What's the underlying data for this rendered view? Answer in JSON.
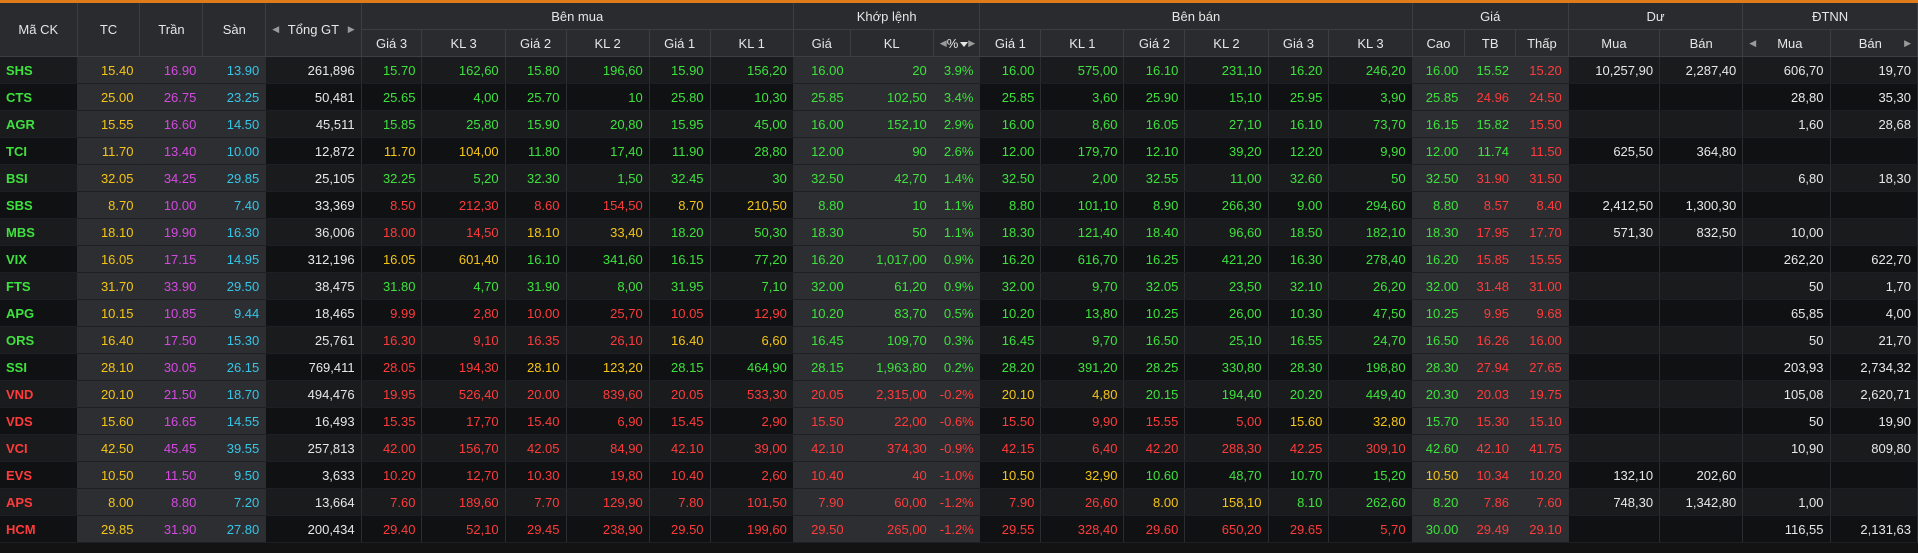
{
  "colors": {
    "up": "#3ee23e",
    "down": "#ff3b3b",
    "ref": "#f5c518",
    "ceil": "#d44ae0",
    "floor": "#36c6e8",
    "neutral": "#e8e8e8",
    "accent": "#e07b1a"
  },
  "header": {
    "symbol": "Mã CK",
    "ref": "TC",
    "ceiling": "Trần",
    "floor": "Sàn",
    "total_value": "Tổng GT",
    "buy_group": "Bên mua",
    "match_group": "Khớp lệnh",
    "sell_group": "Bên bán",
    "price_group": "Giá",
    "remain_group": "Dư",
    "foreign_group": "ĐTNN",
    "buy_cols": [
      "Giá 3",
      "KL 3",
      "Giá 2",
      "KL 2",
      "Giá 1",
      "KL 1"
    ],
    "match_cols": [
      "Giá",
      "KL",
      "%"
    ],
    "sell_cols": [
      "Giá 1",
      "KL 1",
      "Giá 2",
      "KL 2",
      "Giá 3",
      "KL 3"
    ],
    "price_cols": [
      "Cao",
      "TB",
      "Thấp"
    ],
    "remain_cols": [
      "Mua",
      "Bán"
    ],
    "foreign_cols": [
      "Mua",
      "Bán"
    ]
  },
  "rows": [
    {
      "s": "SHS",
      "tc": "15.40",
      "tran": "16.90",
      "san": "13.90",
      "gt": "261,896",
      "b": [
        "15.70",
        "162,60",
        "15.80",
        "196,60",
        "15.90",
        "156,20"
      ],
      "m": [
        "16.00",
        "20",
        "3.9%"
      ],
      "a": [
        "16.00",
        "575,00",
        "16.10",
        "231,10",
        "16.20",
        "246,20"
      ],
      "p": [
        "16.00",
        "15.52",
        "15.20"
      ],
      "d": [
        "10,257,90",
        "2,287,40"
      ],
      "f": [
        "606,70",
        "19,70"
      ],
      "c": {
        "sym": "up",
        "b": [
          "up",
          "up",
          "up",
          "up",
          "up",
          "up"
        ],
        "m": [
          "up",
          "up",
          "up"
        ],
        "a": [
          "up",
          "up",
          "up",
          "up",
          "up",
          "up"
        ],
        "p": [
          "up",
          "up",
          "down"
        ]
      }
    },
    {
      "s": "CTS",
      "tc": "25.00",
      "tran": "26.75",
      "san": "23.25",
      "gt": "50,481",
      "b": [
        "25.65",
        "4,00",
        "25.70",
        "10",
        "25.80",
        "10,30"
      ],
      "m": [
        "25.85",
        "102,50",
        "3.4%"
      ],
      "a": [
        "25.85",
        "3,60",
        "25.90",
        "15,10",
        "25.95",
        "3,90"
      ],
      "p": [
        "25.85",
        "24.96",
        "24.50"
      ],
      "d": [
        "",
        ""
      ],
      "f": [
        "28,80",
        "35,30"
      ],
      "c": {
        "sym": "up",
        "b": [
          "up",
          "up",
          "up",
          "up",
          "up",
          "up"
        ],
        "m": [
          "up",
          "up",
          "up"
        ],
        "a": [
          "up",
          "up",
          "up",
          "up",
          "up",
          "up"
        ],
        "p": [
          "up",
          "down",
          "down"
        ]
      }
    },
    {
      "s": "AGR",
      "tc": "15.55",
      "tran": "16.60",
      "san": "14.50",
      "gt": "45,511",
      "b": [
        "15.85",
        "25,80",
        "15.90",
        "20,80",
        "15.95",
        "45,00"
      ],
      "m": [
        "16.00",
        "152,10",
        "2.9%"
      ],
      "a": [
        "16.00",
        "8,60",
        "16.05",
        "27,10",
        "16.10",
        "73,70"
      ],
      "p": [
        "16.15",
        "15.82",
        "15.50"
      ],
      "d": [
        "",
        ""
      ],
      "f": [
        "1,60",
        "28,68"
      ],
      "c": {
        "sym": "up",
        "b": [
          "up",
          "up",
          "up",
          "up",
          "up",
          "up"
        ],
        "m": [
          "up",
          "up",
          "up"
        ],
        "a": [
          "up",
          "up",
          "up",
          "up",
          "up",
          "up"
        ],
        "p": [
          "up",
          "up",
          "down"
        ]
      }
    },
    {
      "s": "TCI",
      "tc": "11.70",
      "tran": "13.40",
      "san": "10.00",
      "gt": "12,872",
      "b": [
        "11.70",
        "104,00",
        "11.80",
        "17,40",
        "11.90",
        "28,80"
      ],
      "m": [
        "12.00",
        "90",
        "2.6%"
      ],
      "a": [
        "12.00",
        "179,70",
        "12.10",
        "39,20",
        "12.20",
        "9,90"
      ],
      "p": [
        "12.00",
        "11.74",
        "11.50"
      ],
      "d": [
        "625,50",
        "364,80"
      ],
      "f": [
        "",
        ""
      ],
      "c": {
        "sym": "up",
        "b": [
          "ref",
          "ref",
          "up",
          "up",
          "up",
          "up"
        ],
        "m": [
          "up",
          "up",
          "up"
        ],
        "a": [
          "up",
          "up",
          "up",
          "up",
          "up",
          "up"
        ],
        "p": [
          "up",
          "up",
          "down"
        ]
      }
    },
    {
      "s": "BSI",
      "tc": "32.05",
      "tran": "34.25",
      "san": "29.85",
      "gt": "25,105",
      "b": [
        "32.25",
        "5,20",
        "32.30",
        "1,50",
        "32.45",
        "30"
      ],
      "m": [
        "32.50",
        "42,70",
        "1.4%"
      ],
      "a": [
        "32.50",
        "2,00",
        "32.55",
        "11,00",
        "32.60",
        "50"
      ],
      "p": [
        "32.50",
        "31.90",
        "31.50"
      ],
      "d": [
        "",
        ""
      ],
      "f": [
        "6,80",
        "18,30"
      ],
      "c": {
        "sym": "up",
        "b": [
          "up",
          "up",
          "up",
          "up",
          "up",
          "up"
        ],
        "m": [
          "up",
          "up",
          "up"
        ],
        "a": [
          "up",
          "up",
          "up",
          "up",
          "up",
          "up"
        ],
        "p": [
          "up",
          "down",
          "down"
        ]
      }
    },
    {
      "s": "SBS",
      "tc": "8.70",
      "tran": "10.00",
      "san": "7.40",
      "gt": "33,369",
      "b": [
        "8.50",
        "212,30",
        "8.60",
        "154,50",
        "8.70",
        "210,50"
      ],
      "m": [
        "8.80",
        "10",
        "1.1%"
      ],
      "a": [
        "8.80",
        "101,10",
        "8.90",
        "266,30",
        "9.00",
        "294,60"
      ],
      "p": [
        "8.80",
        "8.57",
        "8.40"
      ],
      "d": [
        "2,412,50",
        "1,300,30"
      ],
      "f": [
        "",
        ""
      ],
      "c": {
        "sym": "up",
        "b": [
          "down",
          "down",
          "down",
          "down",
          "ref",
          "ref"
        ],
        "m": [
          "up",
          "up",
          "up"
        ],
        "a": [
          "up",
          "up",
          "up",
          "up",
          "up",
          "up"
        ],
        "p": [
          "up",
          "down",
          "down"
        ]
      }
    },
    {
      "s": "MBS",
      "tc": "18.10",
      "tran": "19.90",
      "san": "16.30",
      "gt": "36,006",
      "b": [
        "18.00",
        "14,50",
        "18.10",
        "33,40",
        "18.20",
        "50,30"
      ],
      "m": [
        "18.30",
        "50",
        "1.1%"
      ],
      "a": [
        "18.30",
        "121,40",
        "18.40",
        "96,60",
        "18.50",
        "182,10"
      ],
      "p": [
        "18.30",
        "17.95",
        "17.70"
      ],
      "d": [
        "571,30",
        "832,50"
      ],
      "f": [
        "10,00",
        ""
      ],
      "c": {
        "sym": "up",
        "b": [
          "down",
          "down",
          "ref",
          "ref",
          "up",
          "up"
        ],
        "m": [
          "up",
          "up",
          "up"
        ],
        "a": [
          "up",
          "up",
          "up",
          "up",
          "up",
          "up"
        ],
        "p": [
          "up",
          "down",
          "down"
        ]
      }
    },
    {
      "s": "VIX",
      "tc": "16.05",
      "tran": "17.15",
      "san": "14.95",
      "gt": "312,196",
      "b": [
        "16.05",
        "601,40",
        "16.10",
        "341,60",
        "16.15",
        "77,20"
      ],
      "m": [
        "16.20",
        "1,017,00",
        "0.9%"
      ],
      "a": [
        "16.20",
        "616,70",
        "16.25",
        "421,20",
        "16.30",
        "278,40"
      ],
      "p": [
        "16.20",
        "15.85",
        "15.55"
      ],
      "d": [
        "",
        ""
      ],
      "f": [
        "262,20",
        "622,70"
      ],
      "c": {
        "sym": "up",
        "b": [
          "ref",
          "ref",
          "up",
          "up",
          "up",
          "up"
        ],
        "m": [
          "up",
          "up",
          "up"
        ],
        "a": [
          "up",
          "up",
          "up",
          "up",
          "up",
          "up"
        ],
        "p": [
          "up",
          "down",
          "down"
        ]
      }
    },
    {
      "s": "FTS",
      "tc": "31.70",
      "tran": "33.90",
      "san": "29.50",
      "gt": "38,475",
      "b": [
        "31.80",
        "4,70",
        "31.90",
        "8,00",
        "31.95",
        "7,10"
      ],
      "m": [
        "32.00",
        "61,20",
        "0.9%"
      ],
      "a": [
        "32.00",
        "9,70",
        "32.05",
        "23,50",
        "32.10",
        "26,20"
      ],
      "p": [
        "32.00",
        "31.48",
        "31.00"
      ],
      "d": [
        "",
        ""
      ],
      "f": [
        "50",
        "1,70"
      ],
      "c": {
        "sym": "up",
        "b": [
          "up",
          "up",
          "up",
          "up",
          "up",
          "up"
        ],
        "m": [
          "up",
          "up",
          "up"
        ],
        "a": [
          "up",
          "up",
          "up",
          "up",
          "up",
          "up"
        ],
        "p": [
          "up",
          "down",
          "down"
        ]
      }
    },
    {
      "s": "APG",
      "tc": "10.15",
      "tran": "10.85",
      "san": "9.44",
      "gt": "18,465",
      "b": [
        "9.99",
        "2,80",
        "10.00",
        "25,70",
        "10.05",
        "12,90"
      ],
      "m": [
        "10.20",
        "83,70",
        "0.5%"
      ],
      "a": [
        "10.20",
        "13,80",
        "10.25",
        "26,00",
        "10.30",
        "47,50"
      ],
      "p": [
        "10.25",
        "9.95",
        "9.68"
      ],
      "d": [
        "",
        ""
      ],
      "f": [
        "65,85",
        "4,00"
      ],
      "c": {
        "sym": "up",
        "b": [
          "down",
          "down",
          "down",
          "down",
          "down",
          "down"
        ],
        "m": [
          "up",
          "up",
          "up"
        ],
        "a": [
          "up",
          "up",
          "up",
          "up",
          "up",
          "up"
        ],
        "p": [
          "up",
          "down",
          "down"
        ]
      }
    },
    {
      "s": "ORS",
      "tc": "16.40",
      "tran": "17.50",
      "san": "15.30",
      "gt": "25,761",
      "b": [
        "16.30",
        "9,10",
        "16.35",
        "26,10",
        "16.40",
        "6,60"
      ],
      "m": [
        "16.45",
        "109,70",
        "0.3%"
      ],
      "a": [
        "16.45",
        "9,70",
        "16.50",
        "25,10",
        "16.55",
        "24,70"
      ],
      "p": [
        "16.50",
        "16.26",
        "16.00"
      ],
      "d": [
        "",
        ""
      ],
      "f": [
        "50",
        "21,70"
      ],
      "c": {
        "sym": "up",
        "b": [
          "down",
          "down",
          "down",
          "down",
          "ref",
          "ref"
        ],
        "m": [
          "up",
          "up",
          "up"
        ],
        "a": [
          "up",
          "up",
          "up",
          "up",
          "up",
          "up"
        ],
        "p": [
          "up",
          "down",
          "down"
        ]
      }
    },
    {
      "s": "SSI",
      "tc": "28.10",
      "tran": "30.05",
      "san": "26.15",
      "gt": "769,411",
      "b": [
        "28.05",
        "194,30",
        "28.10",
        "123,20",
        "28.15",
        "464,90"
      ],
      "m": [
        "28.15",
        "1,963,80",
        "0.2%"
      ],
      "a": [
        "28.20",
        "391,20",
        "28.25",
        "330,80",
        "28.30",
        "198,80"
      ],
      "p": [
        "28.30",
        "27.94",
        "27.65"
      ],
      "d": [
        "",
        ""
      ],
      "f": [
        "203,93",
        "2,734,32"
      ],
      "c": {
        "sym": "up",
        "b": [
          "down",
          "down",
          "ref",
          "ref",
          "up",
          "up"
        ],
        "m": [
          "up",
          "up",
          "up"
        ],
        "a": [
          "up",
          "up",
          "up",
          "up",
          "up",
          "up"
        ],
        "p": [
          "up",
          "down",
          "down"
        ]
      }
    },
    {
      "s": "VND",
      "tc": "20.10",
      "tran": "21.50",
      "san": "18.70",
      "gt": "494,476",
      "b": [
        "19.95",
        "526,40",
        "20.00",
        "839,60",
        "20.05",
        "533,30"
      ],
      "m": [
        "20.05",
        "2,315,00",
        "-0.2%"
      ],
      "a": [
        "20.10",
        "4,80",
        "20.15",
        "194,40",
        "20.20",
        "449,40"
      ],
      "p": [
        "20.30",
        "20.03",
        "19.75"
      ],
      "d": [
        "",
        ""
      ],
      "f": [
        "105,08",
        "2,620,71"
      ],
      "c": {
        "sym": "down",
        "b": [
          "down",
          "down",
          "down",
          "down",
          "down",
          "down"
        ],
        "m": [
          "down",
          "down",
          "down"
        ],
        "a": [
          "ref",
          "ref",
          "up",
          "up",
          "up",
          "up"
        ],
        "p": [
          "up",
          "down",
          "down"
        ]
      }
    },
    {
      "s": "VDS",
      "tc": "15.60",
      "tran": "16.65",
      "san": "14.55",
      "gt": "16,493",
      "b": [
        "15.35",
        "17,70",
        "15.40",
        "6,90",
        "15.45",
        "2,90"
      ],
      "m": [
        "15.50",
        "22,00",
        "-0.6%"
      ],
      "a": [
        "15.50",
        "9,90",
        "15.55",
        "5,00",
        "15.60",
        "32,80"
      ],
      "p": [
        "15.70",
        "15.30",
        "15.10"
      ],
      "d": [
        "",
        ""
      ],
      "f": [
        "50",
        "19,90"
      ],
      "c": {
        "sym": "down",
        "b": [
          "down",
          "down",
          "down",
          "down",
          "down",
          "down"
        ],
        "m": [
          "down",
          "down",
          "down"
        ],
        "a": [
          "down",
          "down",
          "down",
          "down",
          "ref",
          "ref"
        ],
        "p": [
          "up",
          "down",
          "down"
        ]
      }
    },
    {
      "s": "VCI",
      "tc": "42.50",
      "tran": "45.45",
      "san": "39.55",
      "gt": "257,813",
      "b": [
        "42.00",
        "156,70",
        "42.05",
        "84,90",
        "42.10",
        "39,00"
      ],
      "m": [
        "42.10",
        "374,30",
        "-0.9%"
      ],
      "a": [
        "42.15",
        "6,40",
        "42.20",
        "288,30",
        "42.25",
        "309,10"
      ],
      "p": [
        "42.60",
        "42.10",
        "41.75"
      ],
      "d": [
        "",
        ""
      ],
      "f": [
        "10,90",
        "809,80"
      ],
      "c": {
        "sym": "down",
        "b": [
          "down",
          "down",
          "down",
          "down",
          "down",
          "down"
        ],
        "m": [
          "down",
          "down",
          "down"
        ],
        "a": [
          "down",
          "down",
          "down",
          "down",
          "down",
          "down"
        ],
        "p": [
          "up",
          "down",
          "down"
        ]
      }
    },
    {
      "s": "EVS",
      "tc": "10.50",
      "tran": "11.50",
      "san": "9.50",
      "gt": "3,633",
      "b": [
        "10.20",
        "12,70",
        "10.30",
        "19,80",
        "10.40",
        "2,60"
      ],
      "m": [
        "10.40",
        "40",
        "-1.0%"
      ],
      "a": [
        "10.50",
        "32,90",
        "10.60",
        "48,70",
        "10.70",
        "15,20"
      ],
      "p": [
        "10.50",
        "10.34",
        "10.20"
      ],
      "d": [
        "132,10",
        "202,60"
      ],
      "f": [
        "",
        ""
      ],
      "c": {
        "sym": "down",
        "b": [
          "down",
          "down",
          "down",
          "down",
          "down",
          "down"
        ],
        "m": [
          "down",
          "down",
          "down"
        ],
        "a": [
          "ref",
          "ref",
          "up",
          "up",
          "up",
          "up"
        ],
        "p": [
          "ref",
          "down",
          "down"
        ]
      }
    },
    {
      "s": "APS",
      "tc": "8.00",
      "tran": "8.80",
      "san": "7.20",
      "gt": "13,664",
      "b": [
        "7.60",
        "189,60",
        "7.70",
        "129,90",
        "7.80",
        "101,50"
      ],
      "m": [
        "7.90",
        "60,00",
        "-1.2%"
      ],
      "a": [
        "7.90",
        "26,60",
        "8.00",
        "158,10",
        "8.10",
        "262,60"
      ],
      "p": [
        "8.20",
        "7.86",
        "7.60"
      ],
      "d": [
        "748,30",
        "1,342,80"
      ],
      "f": [
        "1,00",
        ""
      ],
      "c": {
        "sym": "down",
        "b": [
          "down",
          "down",
          "down",
          "down",
          "down",
          "down"
        ],
        "m": [
          "down",
          "down",
          "down"
        ],
        "a": [
          "down",
          "down",
          "ref",
          "ref",
          "up",
          "up"
        ],
        "p": [
          "up",
          "down",
          "down"
        ]
      }
    },
    {
      "s": "HCM",
      "tc": "29.85",
      "tran": "31.90",
      "san": "27.80",
      "gt": "200,434",
      "b": [
        "29.40",
        "52,10",
        "29.45",
        "238,90",
        "29.50",
        "199,60"
      ],
      "m": [
        "29.50",
        "265,00",
        "-1.2%"
      ],
      "a": [
        "29.55",
        "328,40",
        "29.60",
        "650,20",
        "29.65",
        "5,70"
      ],
      "p": [
        "30.00",
        "29.49",
        "29.10"
      ],
      "d": [
        "",
        ""
      ],
      "f": [
        "116,55",
        "2,131,63"
      ],
      "c": {
        "sym": "down",
        "b": [
          "down",
          "down",
          "down",
          "down",
          "down",
          "down"
        ],
        "m": [
          "down",
          "down",
          "down"
        ],
        "a": [
          "down",
          "down",
          "down",
          "down",
          "down",
          "down"
        ],
        "p": [
          "up",
          "down",
          "down"
        ]
      }
    }
  ]
}
